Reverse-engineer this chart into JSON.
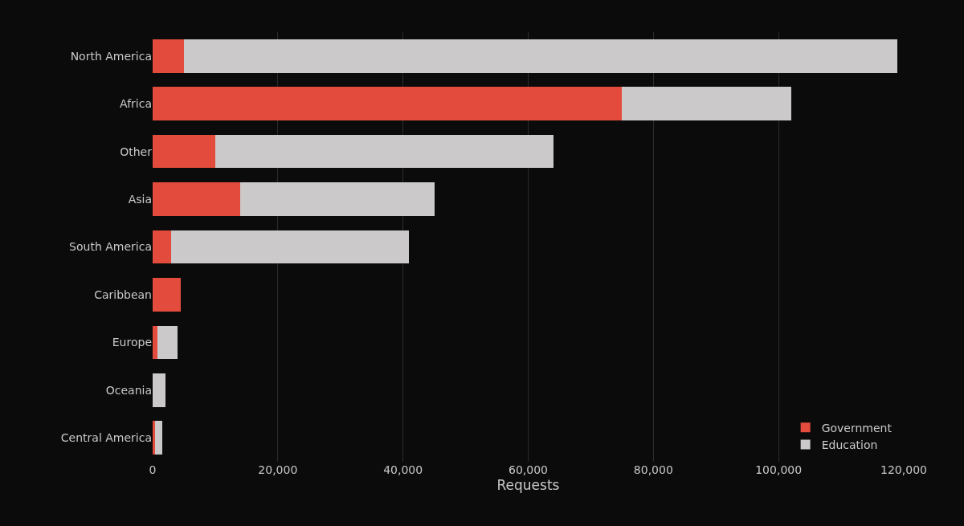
{
  "chart_data": {
    "type": "bar",
    "orientation": "horizontal",
    "stacked": true,
    "categories": [
      "North America",
      "Africa",
      "Other",
      "Asia",
      "South America",
      "Caribbean",
      "Europe",
      "Oceania",
      "Central America"
    ],
    "series": [
      {
        "name": "Government",
        "color": "#e34c3c",
        "values": [
          5000,
          75000,
          10000,
          14000,
          3000,
          4500,
          800,
          0,
          400
        ]
      },
      {
        "name": "Education",
        "color": "#cbc9ca",
        "values": [
          114000,
          27000,
          54000,
          31000,
          38000,
          0,
          3200,
          2000,
          1100
        ]
      }
    ],
    "xlabel": "Requests",
    "xlim": [
      0,
      120000
    ],
    "xticks": [
      {
        "value": 0,
        "label": "0"
      },
      {
        "value": 20000,
        "label": "20,000"
      },
      {
        "value": 40000,
        "label": "40,000"
      },
      {
        "value": 60000,
        "label": "60,000"
      },
      {
        "value": 80000,
        "label": "80,000"
      },
      {
        "value": 100000,
        "label": "100,000"
      },
      {
        "value": 120000,
        "label": "120,000"
      }
    ],
    "grid": "x",
    "legend": "bottom right"
  }
}
